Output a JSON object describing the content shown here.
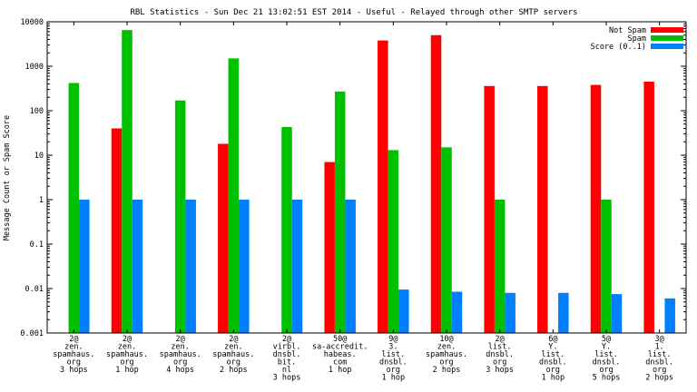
{
  "chart_data": {
    "type": "bar",
    "title": "RBL Statistics - Sun Dec 21 13:02:51 EST 2014 - Useful - Relayed through other SMTP servers",
    "xlabel": "",
    "ylabel": "Message Count or Spam Score",
    "yscale": "log",
    "ylim": [
      0.001,
      10000
    ],
    "yticks": [
      {
        "value": 0.001,
        "label": "0.001"
      },
      {
        "value": 0.01,
        "label": "0.01"
      },
      {
        "value": 0.1,
        "label": "0.1"
      },
      {
        "value": 1,
        "label": "1"
      },
      {
        "value": 10,
        "label": "10"
      },
      {
        "value": 100,
        "label": "100"
      },
      {
        "value": 1000,
        "label": "1000"
      },
      {
        "value": 10000,
        "label": "10000"
      }
    ],
    "grid": false,
    "legend_position": "top-right",
    "categories": [
      [
        "2@",
        "zen.",
        "spamhaus.",
        "org",
        "3 hops"
      ],
      [
        "2@",
        "zen.",
        "spamhaus.",
        "org",
        "1 hop"
      ],
      [
        "2@",
        "zen.",
        "spamhaus.",
        "org",
        "4 hops"
      ],
      [
        "2@",
        "zen.",
        "spamhaus.",
        "org",
        "2 hops"
      ],
      [
        "2@",
        "virbl.",
        "dnsbl.",
        "bit.",
        "nl",
        "3 hops"
      ],
      [
        "50@",
        "sa-accredit.",
        "habeas.",
        "com",
        "1 hop"
      ],
      [
        "9@",
        "3.",
        "list.",
        "dnsbl.",
        "org",
        "1 hop"
      ],
      [
        "10@",
        "zen.",
        "spamhaus.",
        "org",
        "2 hops"
      ],
      [
        "2@",
        "list.",
        "dnsbl.",
        "org",
        "3 hops"
      ],
      [
        "6@",
        "Y.",
        "list.",
        "dnsbl.",
        "org",
        "1 hop"
      ],
      [
        "5@",
        "Y.",
        "list.",
        "dnsbl.",
        "org",
        "5 hops"
      ],
      [
        "3@",
        "1.",
        "list.",
        "dnsbl.",
        "org",
        "2 hops"
      ]
    ],
    "series": [
      {
        "name": "Not Spam",
        "color": "#ff0000",
        "values": [
          null,
          40,
          null,
          18,
          null,
          7,
          3800,
          5000,
          360,
          360,
          380,
          450
        ]
      },
      {
        "name": "Spam",
        "color": "#00c000",
        "values": [
          420,
          6500,
          170,
          1500,
          43,
          270,
          13,
          15,
          1,
          null,
          1,
          null
        ]
      },
      {
        "name": "Score (0..1)",
        "color": "#0080ff",
        "values": [
          1,
          1,
          1,
          1,
          1,
          1,
          0.0095,
          0.0085,
          0.008,
          0.008,
          0.0075,
          0.006
        ]
      }
    ]
  }
}
